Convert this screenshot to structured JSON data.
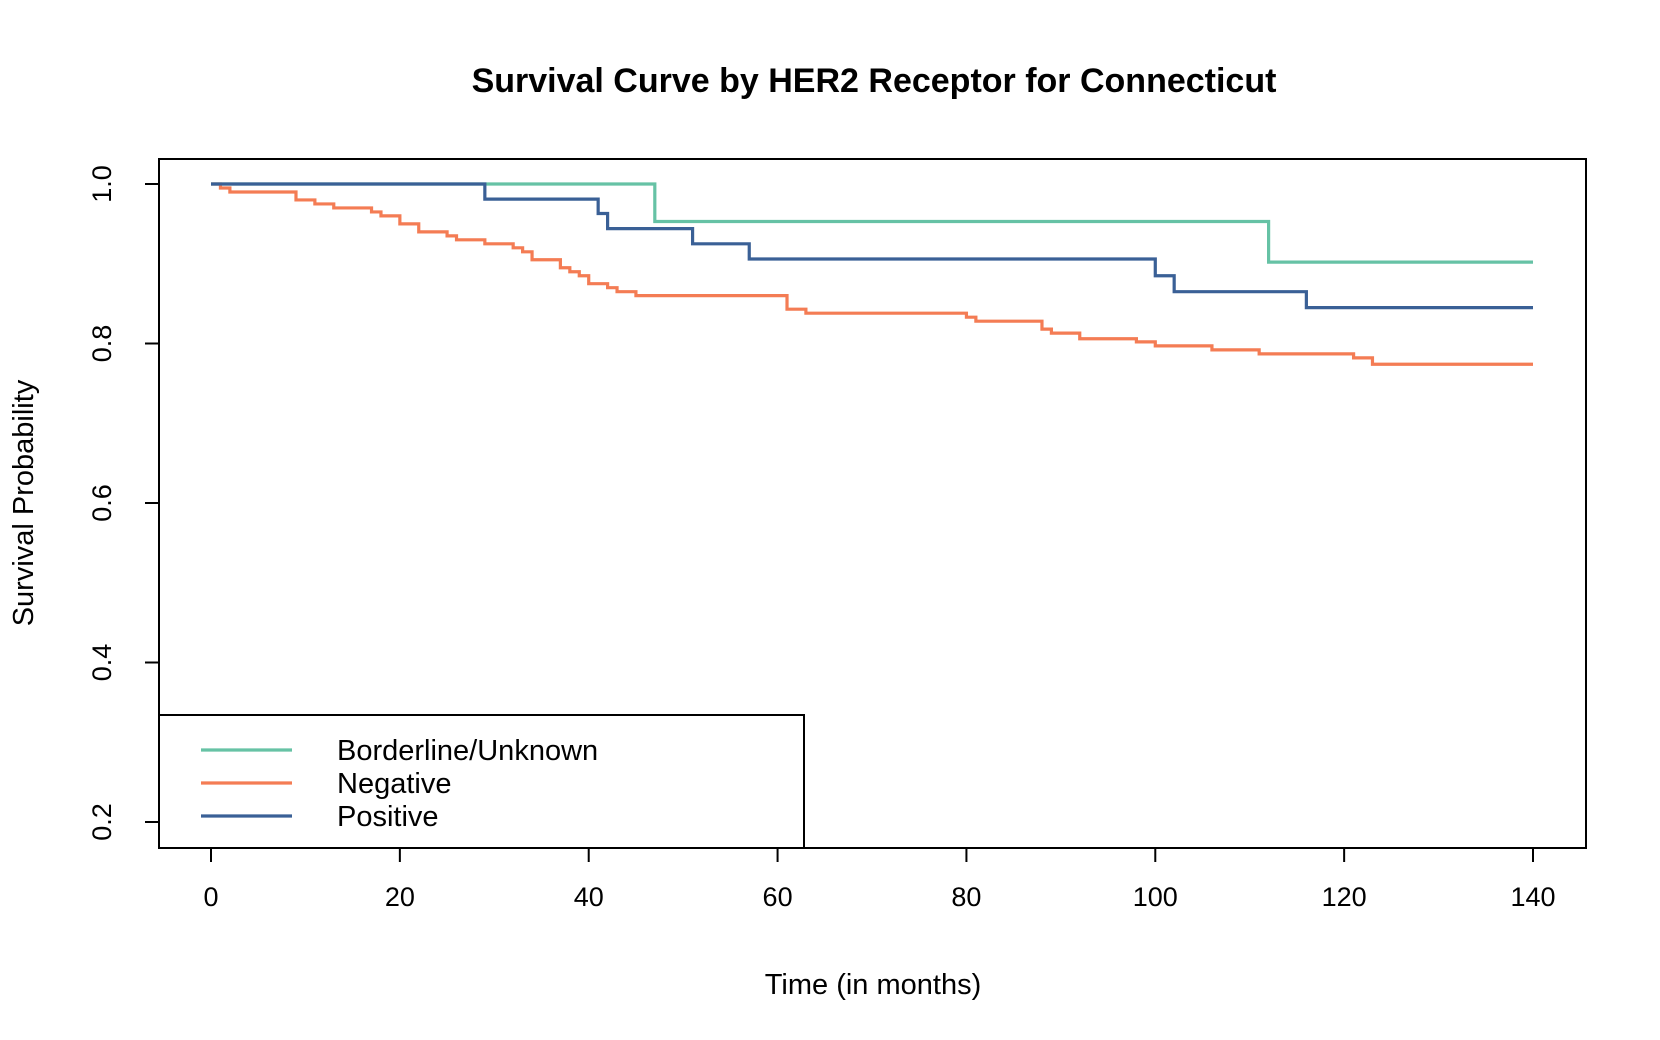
{
  "chart_data": {
    "type": "line",
    "subtype": "step",
    "title": "Survival Curve by HER2 Receptor for Connecticut",
    "xlabel": "Time (in months)",
    "ylabel": "Survival Probability",
    "xlim": [
      0,
      140
    ],
    "ylim": [
      0.2,
      1.0
    ],
    "xticks": [
      "0",
      "20",
      "40",
      "60",
      "80",
      "100",
      "120",
      "140"
    ],
    "yticks": [
      "0.2",
      "0.4",
      "0.6",
      "0.8",
      "1.0"
    ],
    "grid": false,
    "legend_position": "bottom-left",
    "series": [
      {
        "name": "Borderline/Unknown",
        "color": "#66c2a5",
        "points": [
          [
            0,
            1.0
          ],
          [
            47,
            0.953
          ],
          [
            112,
            0.902
          ],
          [
            140,
            0.902
          ]
        ]
      },
      {
        "name": "Negative",
        "color": "#f47c54",
        "points": [
          [
            0,
            1.0
          ],
          [
            1,
            0.995
          ],
          [
            2,
            0.99
          ],
          [
            9,
            0.98
          ],
          [
            11,
            0.975
          ],
          [
            13,
            0.97
          ],
          [
            17,
            0.965
          ],
          [
            18,
            0.96
          ],
          [
            20,
            0.95
          ],
          [
            22,
            0.94
          ],
          [
            25,
            0.935
          ],
          [
            26,
            0.93
          ],
          [
            29,
            0.925
          ],
          [
            32,
            0.92
          ],
          [
            33,
            0.915
          ],
          [
            34,
            0.905
          ],
          [
            37,
            0.895
          ],
          [
            38,
            0.89
          ],
          [
            39,
            0.885
          ],
          [
            40,
            0.875
          ],
          [
            42,
            0.87
          ],
          [
            43,
            0.865
          ],
          [
            45,
            0.86
          ],
          [
            61,
            0.843
          ],
          [
            63,
            0.838
          ],
          [
            80,
            0.833
          ],
          [
            81,
            0.828
          ],
          [
            88,
            0.818
          ],
          [
            89,
            0.813
          ],
          [
            92,
            0.806
          ],
          [
            98,
            0.802
          ],
          [
            100,
            0.797
          ],
          [
            106,
            0.792
          ],
          [
            111,
            0.787
          ],
          [
            121,
            0.782
          ],
          [
            123,
            0.774
          ],
          [
            140,
            0.774
          ]
        ]
      },
      {
        "name": "Positive",
        "color": "#3a6096",
        "points": [
          [
            0,
            1.0
          ],
          [
            29,
            0.981
          ],
          [
            41,
            0.963
          ],
          [
            42,
            0.944
          ],
          [
            51,
            0.925
          ],
          [
            57,
            0.906
          ],
          [
            100,
            0.885
          ],
          [
            102,
            0.865
          ],
          [
            116,
            0.845
          ],
          [
            140,
            0.845
          ]
        ]
      }
    ]
  }
}
